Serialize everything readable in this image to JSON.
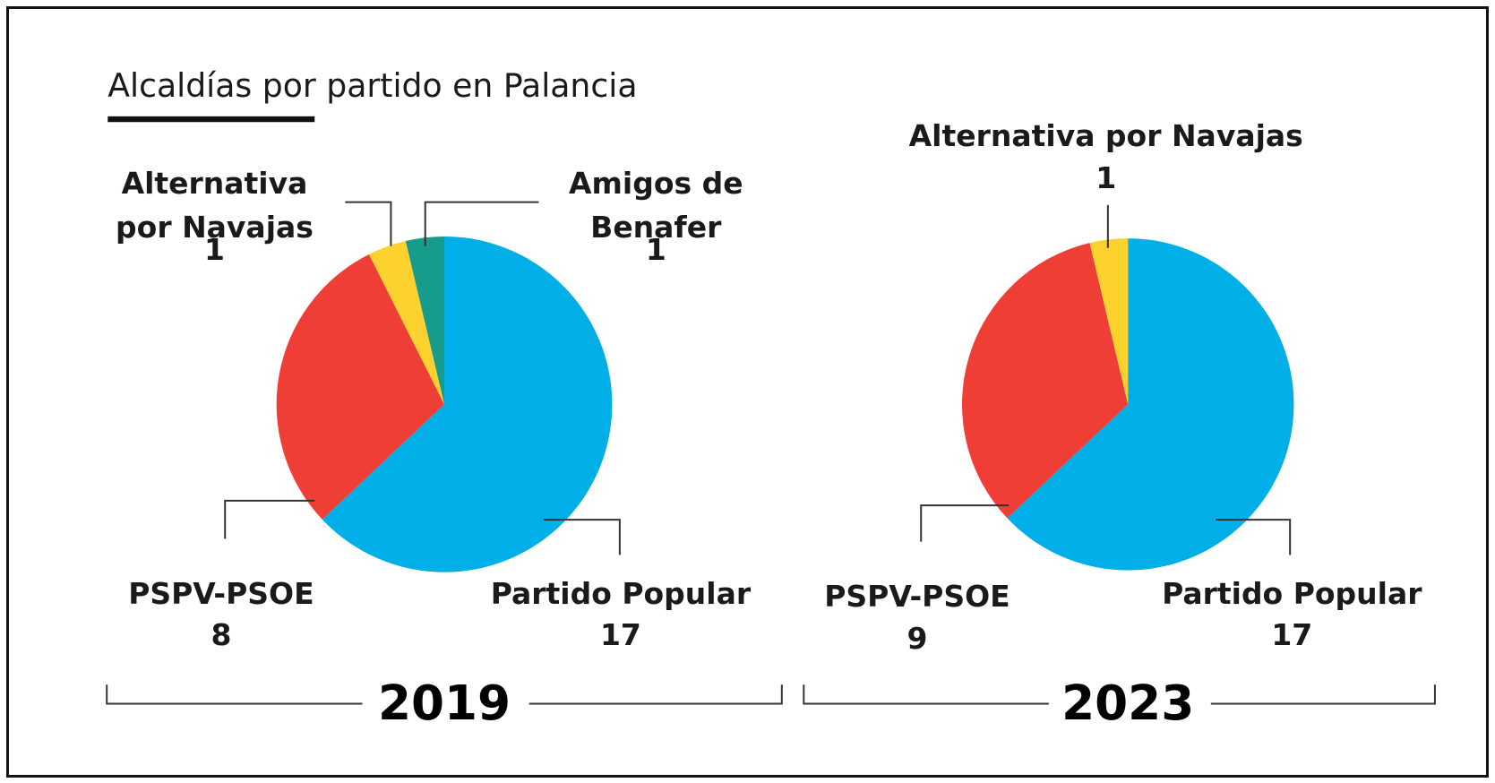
{
  "title": "Alcaldías por partido en Palancia",
  "chart_data": [
    {
      "type": "pie",
      "title": "2019",
      "categories": [
        "Partido Popular",
        "PSPV-PSOE",
        "Alternativa por Navajas",
        "Amigos de Benafer"
      ],
      "values": [
        17,
        8,
        1,
        1
      ],
      "colors": [
        "#00aee8",
        "#ef3e36",
        "#fdd22f",
        "#179b8a"
      ]
    },
    {
      "type": "pie",
      "title": "2023",
      "categories": [
        "Partido Popular",
        "PSPV-PSOE",
        "Alternativa por Navajas"
      ],
      "values": [
        17,
        9,
        1
      ],
      "colors": [
        "#00aee8",
        "#ef3e36",
        "#fdd22f"
      ]
    }
  ]
}
